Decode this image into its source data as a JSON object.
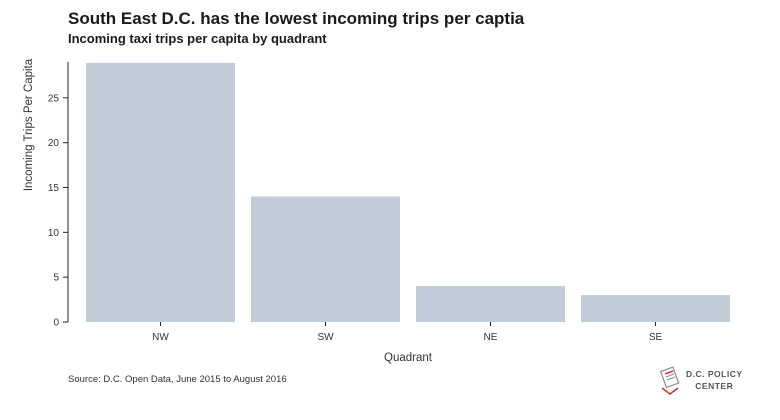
{
  "title": "South East D.C. has the lowest incoming trips per captia",
  "subtitle": "Incoming taxi trips per capita by quadrant",
  "source": "Source: D.C. Open Data, June 2015 to August 2016",
  "logo": {
    "line1": "D.C. POLICY",
    "line2": "CENTER"
  },
  "colors": {
    "bar": "#c0cdd8",
    "axis": "#222222",
    "text": "#333333"
  },
  "chart_data": {
    "type": "bar",
    "categories": [
      "NW",
      "SW",
      "NE",
      "SE"
    ],
    "values": [
      28.9,
      14.0,
      4.0,
      3.0
    ],
    "xlabel": "Quadrant",
    "ylabel": "Incoming Trips Per Capita",
    "ylim": [
      0,
      29
    ],
    "yticks": [
      0,
      5,
      10,
      15,
      20,
      25
    ],
    "grid": false,
    "legend": "none"
  }
}
